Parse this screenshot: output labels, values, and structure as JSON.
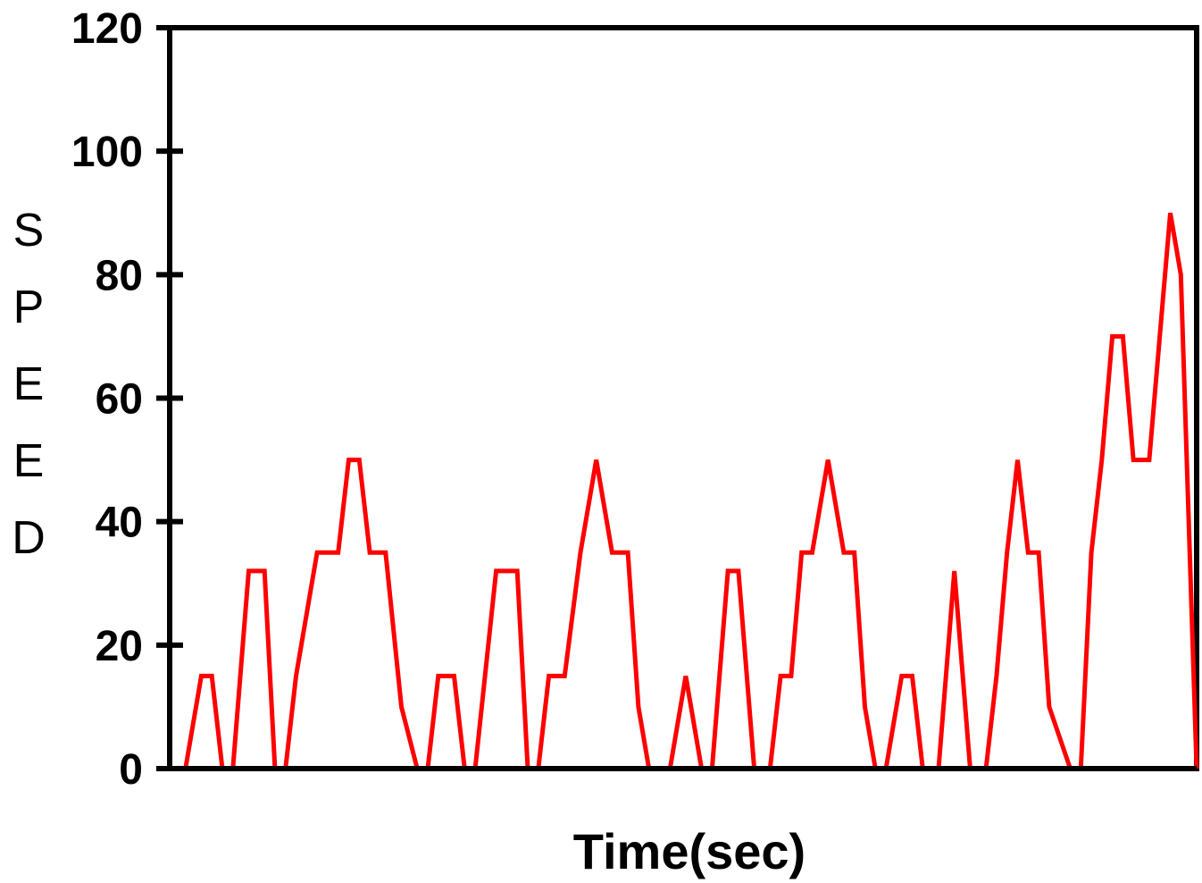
{
  "chart_data": {
    "type": "line",
    "title": "",
    "xlabel": "Time(sec)",
    "ylabel": "SPEED",
    "ylim": [
      0,
      120
    ],
    "yticks": [
      "0",
      "20",
      "40",
      "60",
      "80",
      "100",
      "120"
    ],
    "xlim": [
      0,
      195
    ],
    "grid": false,
    "legend": "none",
    "series": [
      {
        "color": "#ff0000",
        "x": [
          0,
          3,
          6,
          8,
          10,
          12,
          15,
          18,
          20,
          22,
          24,
          28,
          32,
          34,
          36,
          38,
          41,
          44,
          47,
          49,
          51,
          54,
          56,
          58,
          62,
          66,
          68,
          70,
          72,
          75,
          78,
          81,
          84,
          87,
          89,
          91,
          95,
          98,
          101,
          103,
          106,
          108,
          111,
          114,
          116,
          118,
          120,
          122,
          125,
          128,
          130,
          132,
          134,
          136,
          139,
          141,
          143,
          146,
          149,
          152,
          155,
          157,
          159,
          161,
          163,
          165,
          167,
          171,
          173,
          175,
          177,
          179,
          181,
          183,
          186,
          188,
          190,
          192,
          195
        ],
        "y": [
          0,
          0,
          15,
          15,
          0,
          0,
          32,
          32,
          0,
          0,
          15,
          35,
          35,
          50,
          50,
          35,
          35,
          10,
          0,
          0,
          15,
          15,
          0,
          0,
          32,
          32,
          0,
          0,
          15,
          15,
          35,
          50,
          35,
          35,
          10,
          0,
          0,
          15,
          0,
          0,
          32,
          32,
          0,
          0,
          15,
          15,
          35,
          35,
          50,
          35,
          35,
          10,
          0,
          0,
          15,
          15,
          0,
          0,
          32,
          0,
          0,
          15,
          35,
          50,
          35,
          35,
          10,
          0,
          0,
          35,
          50,
          70,
          70,
          50,
          50,
          70,
          90,
          80,
          0
        ]
      }
    ]
  }
}
